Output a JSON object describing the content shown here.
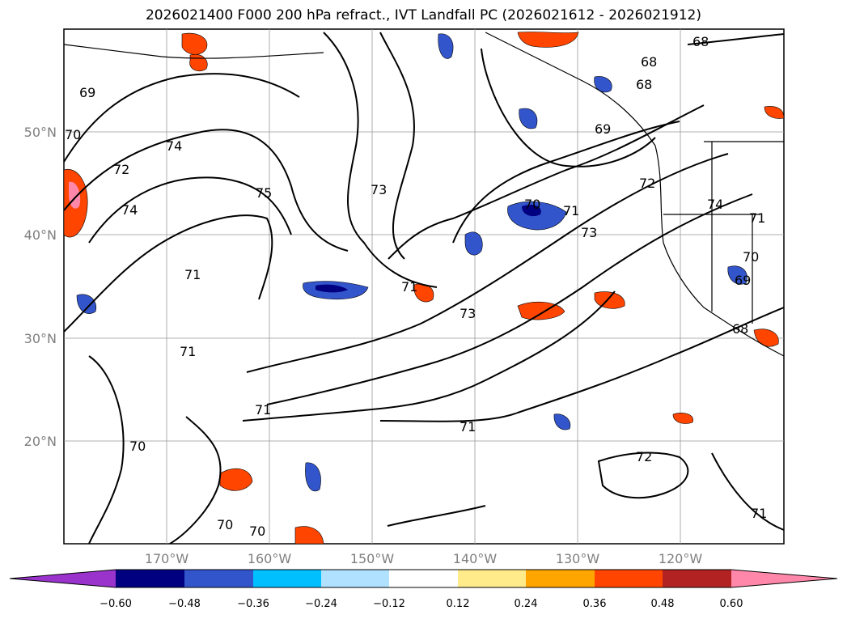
{
  "title": "2026021400 F000 200 hPa refract., IVT Landfall PC (2026021612 - 2026021912)",
  "lat_labels": [
    "50°N",
    "40°N",
    "30°N",
    "20°N"
  ],
  "lon_labels": [
    "170°W",
    "160°W",
    "150°W",
    "140°W",
    "130°W",
    "120°W"
  ],
  "contour_labels": [
    "68",
    "68",
    "68",
    "69",
    "69",
    "69",
    "70",
    "70",
    "70",
    "70",
    "70",
    "70",
    "71",
    "71",
    "71",
    "71",
    "71",
    "71",
    "71",
    "72",
    "72",
    "72",
    "73",
    "73",
    "73",
    "74",
    "74",
    "74",
    "75",
    "71",
    "68"
  ],
  "colorbar": {
    "ticks": [
      "−0.60",
      "−0.48",
      "−0.36",
      "−0.24",
      "−0.12",
      "0.12",
      "0.24",
      "0.36",
      "0.48",
      "0.60"
    ],
    "colors": [
      "#9933cc",
      "#000080",
      "#3355cc",
      "#00bfff",
      "#b0e2ff",
      "#ffffff",
      "#ffeb8a",
      "#ffa500",
      "#ff4500",
      "#b22222",
      "#ff88aa"
    ]
  }
}
